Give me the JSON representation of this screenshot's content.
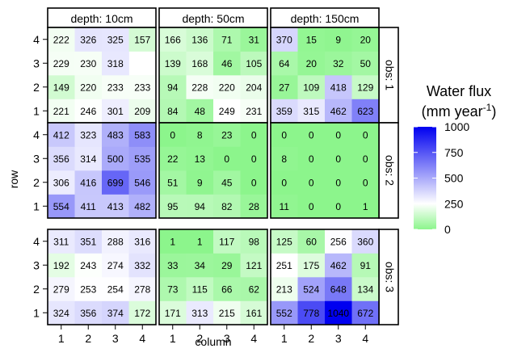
{
  "chart_data": {
    "type": "heatmap",
    "title": "",
    "xlabel": "column",
    "ylabel": "row",
    "x": [
      "1",
      "2",
      "3",
      "4"
    ],
    "y": [
      "1",
      "2",
      "3",
      "4"
    ],
    "facet_columns": [
      "depth: 10cm",
      "depth: 50cm",
      "depth: 150cm"
    ],
    "facet_rows": [
      "obs: 1",
      "obs: 2",
      "obs: 3"
    ],
    "legend": {
      "title_line1": "Water flux",
      "title_line2_prefix": "(mm year",
      "title_line2_sup": "-1",
      "title_line2_suffix": ")",
      "ticks": [
        0,
        250,
        500,
        750,
        1000
      ],
      "range": [
        0,
        1000
      ],
      "placement": "right"
    },
    "colors": {
      "low": "#8cf58c",
      "mid": "#ffffff",
      "high": "#0000f0",
      "midpoint": 250
    },
    "panels": [
      {
        "obs": "obs: 1",
        "depth": "depth: 10cm",
        "values": [
          [
            221,
            246,
            301,
            209
          ],
          [
            149,
            220,
            233,
            233
          ],
          [
            229,
            230,
            318,
            null
          ],
          [
            222,
            326,
            325,
            157
          ]
        ]
      },
      {
        "obs": "obs: 1",
        "depth": "depth: 50cm",
        "values": [
          [
            84,
            48,
            249,
            231
          ],
          [
            94,
            228,
            220,
            204
          ],
          [
            139,
            168,
            46,
            105
          ],
          [
            166,
            136,
            71,
            31
          ]
        ]
      },
      {
        "obs": "obs: 1",
        "depth": "depth: 150cm",
        "values": [
          [
            359,
            315,
            462,
            623
          ],
          [
            27,
            109,
            418,
            129
          ],
          [
            64,
            20,
            32,
            50
          ],
          [
            370,
            15,
            9,
            20
          ]
        ]
      },
      {
        "obs": "obs: 2",
        "depth": "depth: 10cm",
        "values": [
          [
            554,
            411,
            413,
            482
          ],
          [
            306,
            416,
            699,
            546
          ],
          [
            356,
            314,
            500,
            535
          ],
          [
            412,
            323,
            483,
            583
          ]
        ]
      },
      {
        "obs": "obs: 2",
        "depth": "depth: 50cm",
        "values": [
          [
            95,
            94,
            82,
            28
          ],
          [
            51,
            9,
            45,
            0
          ],
          [
            22,
            13,
            0,
            0
          ],
          [
            0,
            8,
            23,
            0
          ]
        ]
      },
      {
        "obs": "obs: 2",
        "depth": "depth: 150cm",
        "values": [
          [
            11,
            0,
            0,
            1
          ],
          [
            0,
            0,
            0,
            0
          ],
          [
            8,
            0,
            0,
            0
          ],
          [
            0,
            0,
            0,
            0
          ]
        ]
      },
      {
        "obs": "obs: 3",
        "depth": "depth: 10cm",
        "values": [
          [
            324,
            356,
            374,
            172
          ],
          [
            279,
            253,
            254,
            278
          ],
          [
            192,
            243,
            274,
            332
          ],
          [
            311,
            351,
            288,
            316
          ]
        ]
      },
      {
        "obs": "obs: 3",
        "depth": "depth: 50cm",
        "values": [
          [
            171,
            313,
            215,
            161
          ],
          [
            73,
            115,
            66,
            62
          ],
          [
            33,
            34,
            29,
            121
          ],
          [
            1,
            1,
            117,
            98
          ]
        ]
      },
      {
        "obs": "obs: 3",
        "depth": "depth: 150cm",
        "values": [
          [
            552,
            778,
            1040,
            672
          ],
          [
            213,
            524,
            648,
            134
          ],
          [
            251,
            175,
            462,
            91
          ],
          [
            125,
            60,
            256,
            360
          ]
        ]
      }
    ]
  }
}
